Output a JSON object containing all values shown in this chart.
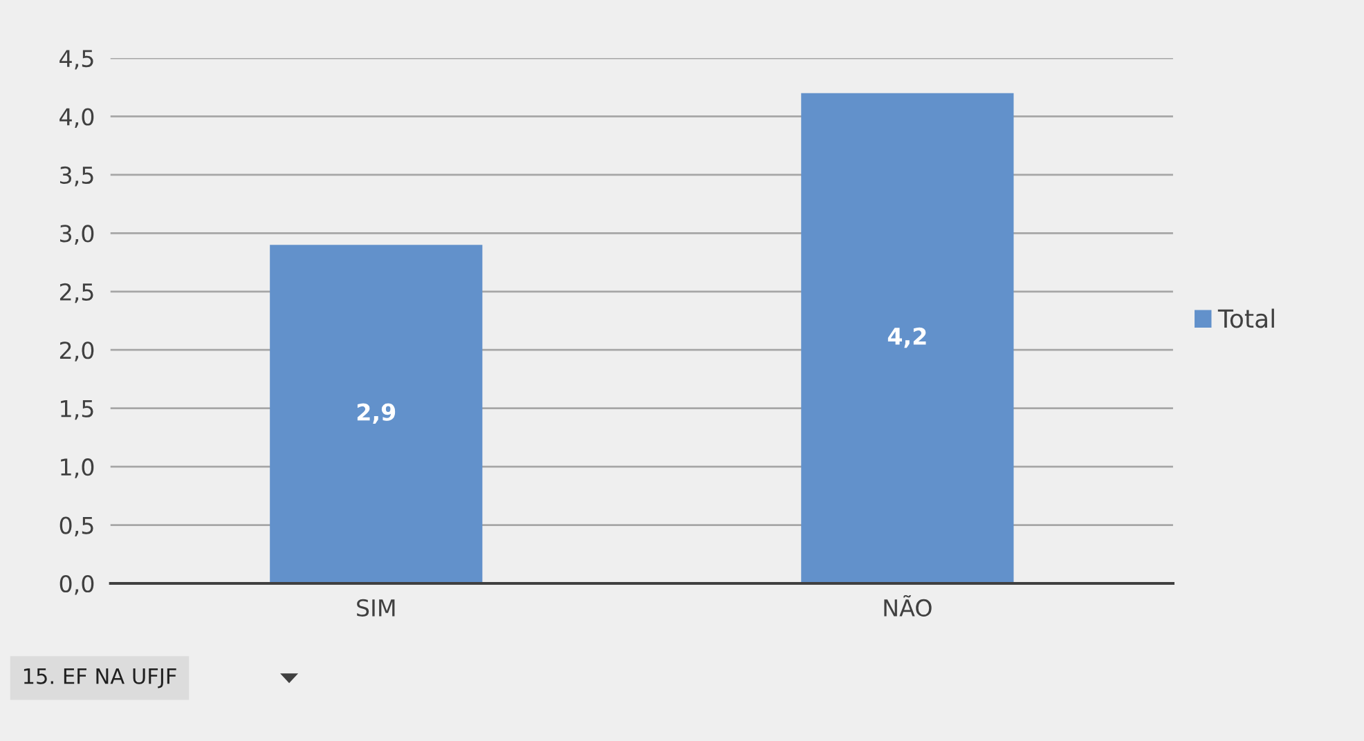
{
  "chart_data": {
    "type": "bar",
    "categories": [
      "SIM",
      "NÃO"
    ],
    "series": [
      {
        "name": "Total",
        "color": "#6291cb",
        "values": [
          2.9,
          4.2
        ],
        "value_labels": [
          "2,9",
          "4,2"
        ]
      }
    ],
    "ylim": [
      0,
      4.5
    ],
    "yticks": [
      {
        "value": 0,
        "label": "0,0"
      },
      {
        "value": 0.5,
        "label": "0,5"
      },
      {
        "value": 1,
        "label": "1,0"
      },
      {
        "value": 1.5,
        "label": "1,5"
      },
      {
        "value": 2,
        "label": "2,0"
      },
      {
        "value": 2.5,
        "label": "2,5"
      },
      {
        "value": 3,
        "label": "3,0"
      },
      {
        "value": 3.5,
        "label": "3,5"
      },
      {
        "value": 4,
        "label": "4,0"
      },
      {
        "value": 4.5,
        "label": "4,5"
      }
    ],
    "grid": "y",
    "legend": "right",
    "annotations": [
      "15. EF NA UFJF"
    ]
  }
}
